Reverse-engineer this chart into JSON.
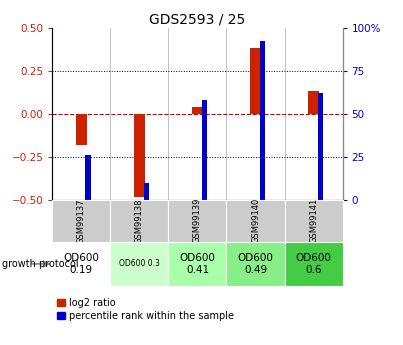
{
  "title": "GDS2593 / 25",
  "samples": [
    "GSM99137",
    "GSM99138",
    "GSM99139",
    "GSM99140",
    "GSM99141"
  ],
  "log2_ratio": [
    -0.18,
    -0.48,
    0.04,
    0.38,
    0.13
  ],
  "percentile_rank": [
    26,
    10,
    58,
    92,
    62
  ],
  "bar_color_red": "#cc2200",
  "bar_color_blue": "#0000cc",
  "ylim_left": [
    -0.5,
    0.5
  ],
  "ylim_right": [
    0,
    100
  ],
  "yticks_left": [
    -0.5,
    -0.25,
    0.0,
    0.25,
    0.5
  ],
  "yticks_right": [
    0,
    25,
    50,
    75,
    100
  ],
  "protocol_labels": [
    "OD600\n0.19",
    "OD600 0.3",
    "OD600\n0.41",
    "OD600\n0.49",
    "OD600\n0.6"
  ],
  "protocol_bg": [
    "#ffffff",
    "#ccffcc",
    "#aaffaa",
    "#88ee88",
    "#44cc44"
  ],
  "protocol_fontsize": [
    7.5,
    5.5,
    7.5,
    7.5,
    7.5
  ],
  "legend_red": "log2 ratio",
  "legend_blue": "percentile rank within the sample",
  "zero_line_color": "#cc0000",
  "plot_bg": "#ffffff",
  "label_bg": "#cccccc"
}
